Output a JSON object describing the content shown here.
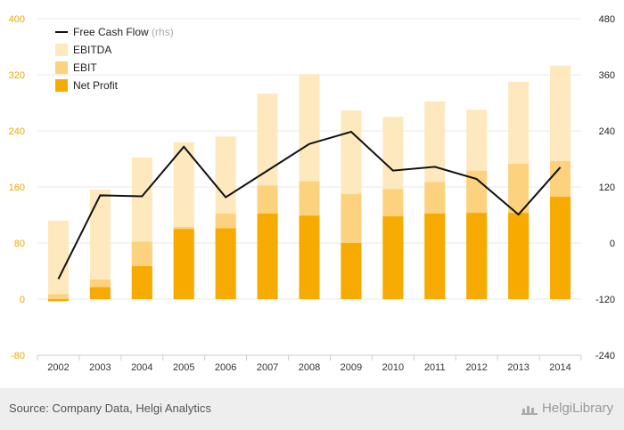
{
  "chart_data": {
    "type": "bar",
    "categories": [
      "2002",
      "2003",
      "2004",
      "2005",
      "2006",
      "2007",
      "2008",
      "2009",
      "2010",
      "2011",
      "2012",
      "2013",
      "2014"
    ],
    "series": [
      {
        "name": "EBITDA",
        "type": "bar",
        "axis": "left",
        "color": "#fde9bd",
        "values": [
          112,
          156,
          202,
          224,
          232,
          293,
          321,
          269,
          260,
          282,
          270,
          310,
          333
        ]
      },
      {
        "name": "EBIT",
        "type": "bar",
        "axis": "left",
        "color": "#fcd27f",
        "values": [
          7,
          28,
          82,
          103,
          122,
          162,
          168,
          150,
          157,
          167,
          183,
          193,
          197
        ]
      },
      {
        "name": "Net Profit",
        "type": "bar",
        "axis": "left",
        "color": "#f7ab00",
        "values": [
          -3,
          17,
          47,
          100,
          101,
          122,
          119,
          80,
          118,
          122,
          123,
          123,
          146
        ]
      },
      {
        "name": "Free Cash Flow",
        "type": "line",
        "axis": "right",
        "color": "#111111",
        "values": [
          -77,
          102,
          100,
          206,
          98,
          155,
          212,
          238,
          155,
          163,
          137,
          61,
          162
        ]
      }
    ],
    "legend": {
      "position": "top-left",
      "items": [
        {
          "label": "Free Cash Flow",
          "suffix": "(rhs)",
          "kind": "line",
          "color": "#111111"
        },
        {
          "label": "EBITDA",
          "suffix": "",
          "kind": "box",
          "color": "#fde9bd"
        },
        {
          "label": "EBIT",
          "suffix": "",
          "kind": "box",
          "color": "#fcd27f"
        },
        {
          "label": "Net Profit",
          "suffix": "",
          "kind": "box",
          "color": "#f7ab00"
        }
      ]
    },
    "y_left": {
      "ticks": [
        -80,
        0,
        80,
        160,
        240,
        320,
        400
      ],
      "range": [
        -80,
        400
      ],
      "label_color": "#f2a900"
    },
    "y_right": {
      "ticks": [
        -240,
        -120,
        0,
        120,
        240,
        360,
        480
      ],
      "range": [
        -240,
        480
      ],
      "label_color": "#222222"
    },
    "grid": true
  },
  "footer": {
    "source": "Source: Company Data, Helgi Analytics",
    "brand": "HelgiLibrary"
  }
}
